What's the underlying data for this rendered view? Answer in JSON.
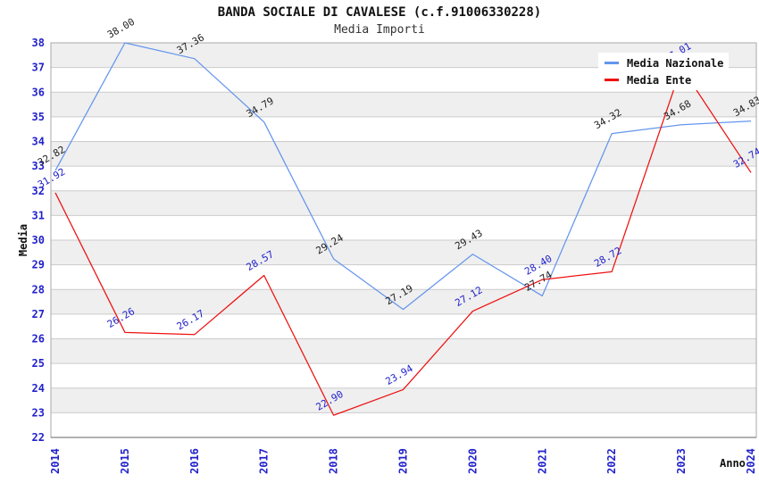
{
  "header": {
    "title": "BANDA SOCIALE DI CAVALESE (c.f.91006330228)",
    "subtitle": "Media Importi"
  },
  "colors": {
    "band_gray": "#EFEFEF",
    "gridline": "#CCCCCC",
    "plot_border": "#AAAAAA",
    "bottom_axis": "#666666",
    "axis_tick_text": "#2222CC",
    "series_nazionale": "#6495ED",
    "series_ente": "#EE1111",
    "label_nazionale": "#222222",
    "label_ente": "#2222CC"
  },
  "chart_data": {
    "type": "line",
    "title": "BANDA SOCIALE DI CAVALESE (c.f.91006330228)",
    "subtitle": "Media Importi",
    "xlabel": "Anno",
    "ylabel": "Media",
    "x": [
      2014,
      2015,
      2016,
      2017,
      2018,
      2019,
      2020,
      2021,
      2022,
      2023,
      2024
    ],
    "ylim": [
      22,
      38
    ],
    "ytick_step": 1,
    "grid": "horizontal-bands",
    "legend_position": "top-right",
    "series": [
      {
        "name": "Media Nazionale",
        "color": "#6495ED",
        "label_color": "#222222",
        "values": [
          32.82,
          38.0,
          37.36,
          34.79,
          29.24,
          27.19,
          29.43,
          27.74,
          34.32,
          34.68,
          34.83
        ]
      },
      {
        "name": "Media Ente",
        "color": "#EE1111",
        "label_color": "#2222CC",
        "values": [
          31.92,
          26.26,
          26.17,
          28.57,
          22.9,
          23.94,
          27.12,
          28.4,
          28.72,
          37.01,
          32.74
        ]
      }
    ]
  }
}
